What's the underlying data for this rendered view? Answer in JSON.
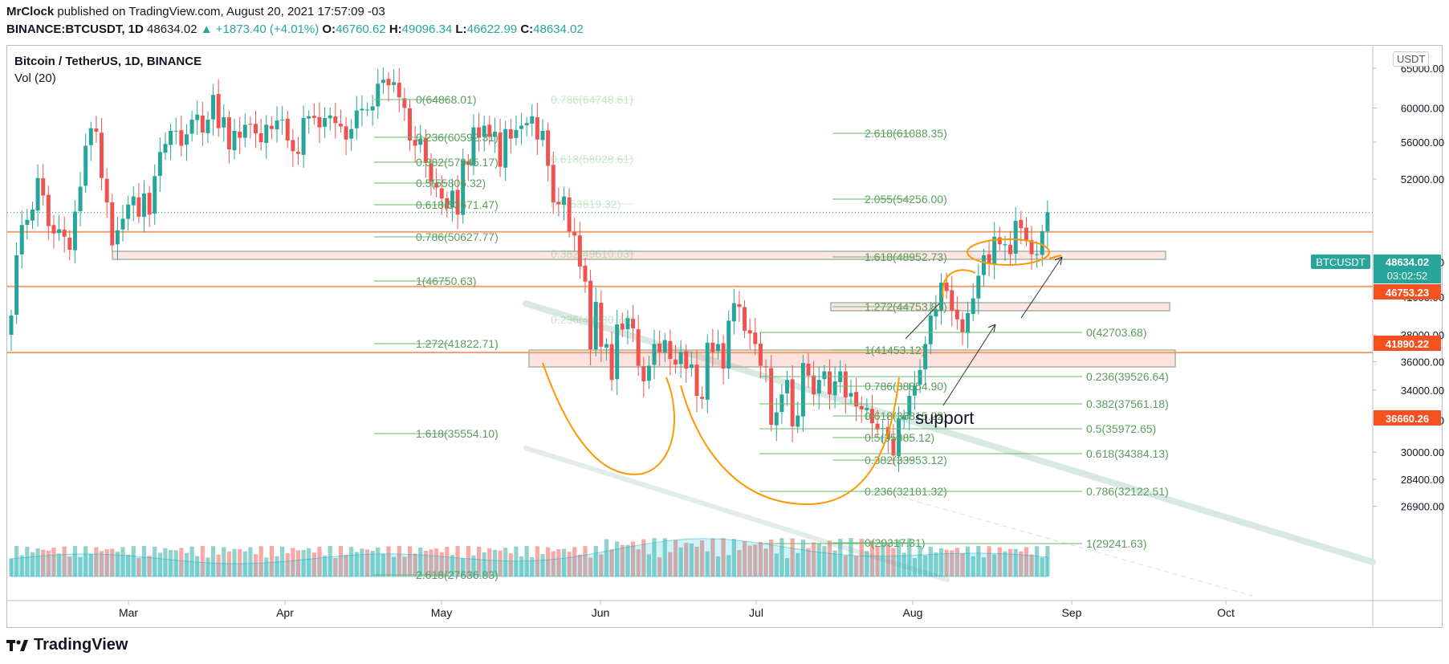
{
  "header": {
    "author": "MrClock",
    "published": "published on TradingView.com, August 20, 2021 17:57:09 -03",
    "symbol": "BINANCE:BTCUSDT, 1D",
    "last": "48634.02",
    "change": "▲ +1873.40 (+4.01%)",
    "o_label": "O:",
    "o": "46760.62",
    "h_label": "H:",
    "h": "49096.34",
    "l_label": "L:",
    "l": "46622.99",
    "c_label": "C:",
    "c": "48634.02"
  },
  "pane": {
    "title": "Bitcoin / TetherUS, 1D, BINANCE",
    "volume": "Vol (20)",
    "currency": "USDT"
  },
  "footer": {
    "brand": "TradingView"
  },
  "colors": {
    "up": "#26a69a",
    "down": "#ef5350",
    "fib": "#66bb6a",
    "level": "#f2a06b",
    "ticker": "#26a69a",
    "level_tag": "#f4511e",
    "trend": "#ff9800"
  },
  "chart_data": {
    "type": "candlestick",
    "title": "Bitcoin / TetherUS, 1D, BINANCE",
    "x_ticks": [
      "Mar",
      "Apr",
      "May",
      "Jun",
      "Jul",
      "Aug",
      "Sep",
      "Oct"
    ],
    "y_ticks": [
      "65000.00",
      "60000.00",
      "56000.00",
      "52000.00",
      "44000.00",
      "41000.00",
      "38000.00",
      "36000.00",
      "34000.00",
      "32000.00",
      "30000.00",
      "28400.00",
      "26900.00"
    ],
    "ylim": [
      26200,
      70000
    ],
    "scale": "log",
    "closes": [
      39500,
      44600,
      47400,
      47900,
      48900,
      52100,
      50300,
      47300,
      46600,
      47000,
      46300,
      45100,
      48700,
      51200,
      55600,
      57600,
      57200,
      52100,
      49600,
      45500,
      46900,
      48000,
      49400,
      50200,
      48200,
      50500,
      48400,
      52300,
      54900,
      55800,
      57300,
      57300,
      55600,
      56900,
      58600,
      59200,
      57100,
      58600,
      61600,
      57600,
      58900,
      55200,
      57300,
      56500,
      58000,
      58000,
      57000,
      56000,
      58000,
      57500,
      58500,
      58600,
      56200,
      55000,
      54700,
      58800,
      59000,
      58800,
      57700,
      58800,
      59100,
      58200,
      57800,
      56300,
      57500,
      59700,
      59900,
      59800,
      60200,
      63000,
      63500,
      62800,
      63200,
      61300,
      60000,
      56200,
      55600,
      56400,
      53700,
      51700,
      51100,
      50000,
      49000,
      50800,
      48400,
      54000,
      53500,
      57700,
      56500,
      57900,
      56600,
      57200,
      53300,
      57500,
      56400,
      57400,
      57900,
      58200,
      59000,
      56300,
      57300,
      53400,
      49600,
      49400,
      50200,
      46800,
      46400,
      43600,
      42300,
      36900,
      40600,
      37100,
      37300,
      34700,
      38800,
      38400,
      39300,
      38500,
      35700,
      34600,
      35700,
      37300,
      36700,
      37600,
      36200,
      35800,
      36700,
      35500,
      35800,
      33600,
      33400,
      37400,
      36700,
      37300,
      35500,
      39100,
      40500,
      40200,
      38300,
      38100,
      37300,
      35700,
      35600,
      31700,
      32500,
      33700,
      34700,
      31600,
      32300,
      35900,
      35000,
      33700,
      34700,
      35300,
      33700,
      34600,
      35300,
      33500,
      33800,
      32900,
      32700,
      32800,
      31800,
      31400,
      31500,
      30800,
      29800,
      32100,
      32300,
      33600,
      34300,
      35400,
      37300,
      39500,
      40000,
      42200,
      41500,
      39900,
      39200,
      38200,
      39700,
      40900,
      42800,
      44600,
      43800,
      46300,
      45600,
      45600,
      44700,
      47800,
      47100,
      46000,
      44700,
      44700,
      46800,
      48634
    ],
    "fib_labels": [
      "0(64868.01)",
      "0.236(60592.31)",
      "0.382(57945.17)",
      "0.5(55806.32)",
      "0.618(53671.47)",
      "0.786(50627.77)",
      "1(46750.63)",
      "1.272(41822.71)",
      "1.618(35554.10)",
      "2.618(27636.83)",
      "0.786(64748.61)",
      "0.618(58028.61)",
      "0.5(53819.32)",
      "0.382(49610.03)",
      "0.236(43530.74)",
      "2.618(61088.35)",
      "2.055(54256.00)",
      "1.618(48952.73)",
      "1.272(44753.81)",
      "1(41453.12)",
      "0.786(38854.90)",
      "0.618(36815.22)",
      "0.5(35385.12)",
      "0.382(33953.12)",
      "0.236(32181.32)",
      "0(29317.31)",
      "0(42703.68)",
      "0.236(39526.64)",
      "0.382(37561.18)",
      "0.5(35972.65)",
      "0.618(34384.13)",
      "0.786(32122.51)",
      "1(29241.63)"
    ],
    "price_tags": [
      {
        "label": "BTCUSDT",
        "value": "48634.02",
        "sub": "03:02:52"
      },
      {
        "value": "46753.23"
      },
      {
        "value": "41890.22"
      },
      {
        "value": "36660.26"
      }
    ],
    "annotations": [
      "support"
    ]
  }
}
